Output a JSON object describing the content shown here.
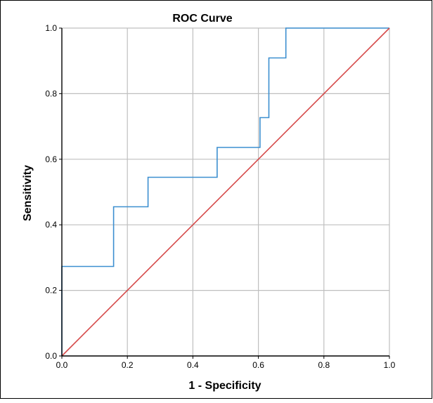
{
  "chart_data": {
    "type": "line",
    "title": "ROC Curve",
    "xlabel": "1 - Specificity",
    "ylabel": "Sensitivity",
    "xlim": [
      0,
      1
    ],
    "ylim": [
      0,
      1
    ],
    "grid": true,
    "x_ticks": [
      "0.0",
      "0.2",
      "0.4",
      "0.6",
      "0.8",
      "1.0"
    ],
    "y_ticks": [
      "0.0",
      "0.2",
      "0.4",
      "0.6",
      "0.8",
      "1.0"
    ],
    "series": [
      {
        "color": "#3c8fd0",
        "step": true,
        "x": [
          0.0,
          0.0,
          0.158,
          0.158,
          0.263,
          0.263,
          0.474,
          0.474,
          0.605,
          0.605,
          0.632,
          0.632,
          0.684,
          0.684,
          1.0
        ],
        "y": [
          0.0,
          0.273,
          0.273,
          0.455,
          0.455,
          0.545,
          0.545,
          0.636,
          0.636,
          0.727,
          0.727,
          0.909,
          0.909,
          1.0,
          1.0
        ]
      },
      {
        "color": "#d64a4a",
        "step": false,
        "x": [
          0.0,
          1.0
        ],
        "y": [
          0.0,
          1.0
        ]
      }
    ],
    "colors": {
      "grid": "#bfbfbf",
      "axis": "#000000",
      "frame": "#000000"
    }
  }
}
